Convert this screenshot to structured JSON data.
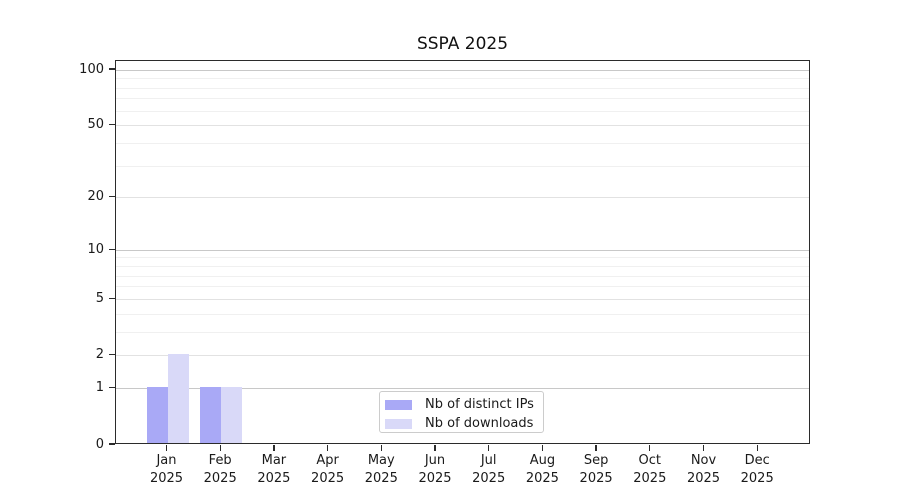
{
  "chart_data": {
    "type": "bar",
    "title": "SSPA 2025",
    "categories": [
      "Jan",
      "Feb",
      "Mar",
      "Apr",
      "May",
      "Jun",
      "Jul",
      "Aug",
      "Sep",
      "Oct",
      "Nov",
      "Dec"
    ],
    "category_year": "2025",
    "series": [
      {
        "name": "Nb of distinct IPs",
        "color": "#a9a9f6",
        "values": [
          1,
          1,
          0,
          0,
          0,
          0,
          0,
          0,
          0,
          0,
          0,
          0
        ]
      },
      {
        "name": "Nb of downloads",
        "color": "#d9d9f8",
        "values": [
          2,
          1,
          0,
          0,
          0,
          0,
          0,
          0,
          0,
          0,
          0,
          0
        ]
      }
    ],
    "y_axis": {
      "scale": "log1p",
      "labeled_ticks": [
        0,
        1,
        2,
        5,
        10,
        20,
        50,
        100
      ],
      "decade_ticks": [
        1,
        10,
        100
      ],
      "sub_ticks": [
        2,
        5,
        20,
        50
      ],
      "minor_ticks": [
        3,
        4,
        6,
        7,
        8,
        9,
        30,
        40,
        60,
        70,
        80,
        90
      ],
      "ylim": [
        0,
        112
      ]
    },
    "legend": {
      "position": "lower center"
    },
    "grid": true,
    "colors": {
      "spine": "#2b2b2b",
      "grid_decade": "#c8c8c8",
      "grid_sub": "#e2e2e2",
      "grid_minor": "#f0f0f0",
      "text": "#1a1a1a",
      "background": "#ffffff",
      "legend_border": "#cccccc"
    }
  }
}
